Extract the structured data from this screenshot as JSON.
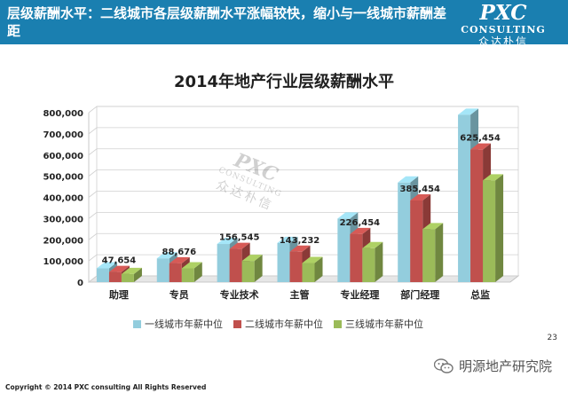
{
  "header": {
    "title": "层级薪酬水平：二线城市各层级薪酬水平涨幅较快，缩小与一线城市薪酬差距",
    "brand_main": "PXC",
    "brand_sub": "CONSULTING",
    "brand_cn": "众达朴信",
    "bg_color": "#1a7fb0"
  },
  "watermark": {
    "main": "PXC",
    "sub": "CONSULTING",
    "cn": "众达朴信"
  },
  "chart_data": {
    "type": "bar",
    "title": "2014年地产行业层级薪酬水平",
    "categories": [
      "助理",
      "专员",
      "专业技术",
      "主管",
      "专业经理",
      "部门经理",
      "总监"
    ],
    "series": [
      {
        "name": "一线城市年薪中位",
        "color": "#93cddd",
        "values": [
          65000,
          112000,
          180000,
          185000,
          300000,
          470000,
          790000
        ]
      },
      {
        "name": "二线城市年薪中位",
        "color": "#c0504d",
        "values": [
          47654,
          88676,
          156545,
          143232,
          226454,
          385454,
          625454
        ]
      },
      {
        "name": "三线城市年薪中位",
        "color": "#9bbb59",
        "values": [
          38000,
          65000,
          100000,
          90000,
          160000,
          250000,
          480000
        ]
      }
    ],
    "data_labels": [
      "47,654",
      "88,676",
      "156,545",
      "143,232",
      "226,454",
      "385,454",
      "625,454"
    ],
    "y_ticks": [
      "0",
      "100,000",
      "200,000",
      "300,000",
      "400,000",
      "500,000",
      "600,000",
      "700,000",
      "800,000"
    ],
    "ylim": [
      0,
      800000
    ],
    "legend_position": "bottom"
  },
  "footer": {
    "page_number": "23",
    "copyright": "Copyright © 2014  PXC consulting All Rights Reserved",
    "wechat_account": "明源地产研究院"
  }
}
